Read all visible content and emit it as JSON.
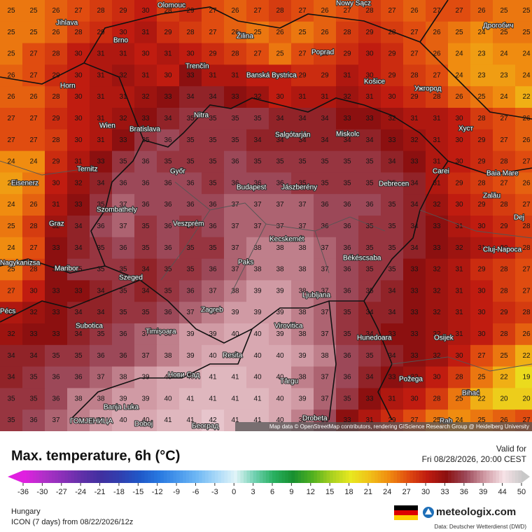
{
  "map": {
    "temperature_grid": [
      [
        25,
        25,
        26,
        27,
        28,
        29,
        30,
        28,
        29,
        27,
        26,
        27,
        28,
        27,
        26,
        27,
        28,
        27,
        26,
        27,
        27,
        26,
        25,
        25
      ],
      [
        25,
        25,
        26,
        28,
        29,
        30,
        31,
        29,
        28,
        27,
        26,
        25,
        26,
        25,
        26,
        28,
        29,
        28,
        27,
        26,
        25,
        24,
        25,
        25
      ],
      [
        25,
        27,
        28,
        30,
        31,
        31,
        30,
        31,
        30,
        29,
        28,
        27,
        25,
        27,
        28,
        29,
        30,
        29,
        27,
        26,
        24,
        23,
        24,
        24
      ],
      [
        26,
        27,
        29,
        30,
        31,
        32,
        31,
        30,
        33,
        31,
        31,
        30,
        30,
        29,
        29,
        31,
        30,
        29,
        28,
        27,
        24,
        23,
        23,
        24
      ],
      [
        26,
        26,
        28,
        30,
        31,
        31,
        32,
        33,
        34,
        34,
        33,
        32,
        30,
        31,
        31,
        32,
        31,
        30,
        29,
        28,
        26,
        25,
        24,
        22
      ],
      [
        27,
        27,
        29,
        30,
        31,
        32,
        33,
        34,
        35,
        35,
        35,
        35,
        34,
        34,
        34,
        33,
        33,
        32,
        31,
        31,
        30,
        28,
        27,
        26
      ],
      [
        27,
        27,
        28,
        30,
        31,
        33,
        35,
        36,
        35,
        35,
        35,
        34,
        34,
        34,
        34,
        34,
        34,
        33,
        32,
        31,
        30,
        29,
        27,
        26
      ],
      [
        24,
        24,
        29,
        31,
        33,
        35,
        36,
        35,
        35,
        35,
        36,
        35,
        35,
        35,
        35,
        35,
        35,
        34,
        33,
        31,
        30,
        29,
        28,
        27
      ],
      [
        23,
        25,
        30,
        32,
        34,
        36,
        36,
        36,
        36,
        35,
        36,
        36,
        36,
        35,
        35,
        35,
        35,
        35,
        34,
        31,
        29,
        28,
        27,
        26
      ],
      [
        24,
        26,
        31,
        33,
        35,
        37,
        36,
        36,
        36,
        36,
        37,
        37,
        37,
        37,
        36,
        36,
        36,
        35,
        34,
        32,
        30,
        29,
        28,
        27
      ],
      [
        25,
        28,
        32,
        34,
        36,
        37,
        35,
        36,
        35,
        36,
        37,
        37,
        37,
        37,
        36,
        36,
        35,
        35,
        34,
        33,
        31,
        30,
        29,
        28
      ],
      [
        24,
        27,
        33,
        34,
        35,
        36,
        35,
        36,
        35,
        35,
        37,
        38,
        38,
        38,
        37,
        36,
        35,
        35,
        34,
        33,
        32,
        31,
        30,
        28
      ],
      [
        25,
        28,
        33,
        35,
        35,
        35,
        34,
        35,
        35,
        36,
        37,
        38,
        38,
        38,
        37,
        36,
        35,
        35,
        33,
        32,
        31,
        29,
        28,
        27
      ],
      [
        27,
        30,
        33,
        33,
        34,
        35,
        34,
        35,
        36,
        37,
        38,
        39,
        39,
        38,
        37,
        36,
        35,
        34,
        33,
        32,
        31,
        30,
        28,
        27
      ],
      [
        31,
        32,
        33,
        34,
        34,
        35,
        35,
        36,
        37,
        38,
        39,
        39,
        39,
        38,
        37,
        35,
        34,
        34,
        33,
        32,
        31,
        30,
        29,
        28
      ],
      [
        32,
        33,
        33,
        34,
        35,
        36,
        37,
        38,
        39,
        39,
        40,
        40,
        39,
        38,
        37,
        35,
        34,
        33,
        33,
        32,
        31,
        30,
        28,
        26
      ],
      [
        34,
        34,
        35,
        35,
        36,
        36,
        37,
        38,
        39,
        40,
        40,
        40,
        40,
        39,
        38,
        36,
        35,
        34,
        33,
        32,
        30,
        27,
        25,
        22
      ],
      [
        34,
        35,
        36,
        36,
        37,
        38,
        39,
        40,
        40,
        41,
        41,
        40,
        40,
        38,
        37,
        36,
        34,
        33,
        32,
        30,
        28,
        25,
        22,
        19
      ],
      [
        35,
        35,
        36,
        38,
        38,
        39,
        39,
        40,
        41,
        41,
        41,
        41,
        40,
        39,
        37,
        35,
        33,
        31,
        30,
        28,
        25,
        22,
        20,
        20
      ],
      [
        35,
        36,
        37,
        38,
        39,
        40,
        40,
        41,
        41,
        42,
        41,
        41,
        40,
        38,
        36,
        33,
        31,
        29,
        27,
        25,
        24,
        25,
        26,
        27
      ]
    ],
    "cities": [
      "Olomouc",
      "Nowy Sącz",
      "Jihlava",
      "Brno",
      "Žilina",
      "Дрогобич",
      "Poprad",
      "Trenčín",
      "Banská Bystrica",
      "Košice",
      "Ужгород",
      "Horn",
      "Nitra",
      "Wien",
      "Bratislava",
      "Salgótarján",
      "Miskolc",
      "Хуст",
      "Ternitz",
      "Győr",
      "Carei",
      "Baia Mare",
      "Eisenerz",
      "Budapest",
      "Jászberény",
      "Debrecen",
      "Szombathely",
      "Zalău",
      "Graz",
      "Veszprém",
      "Dej",
      "Kecskemét",
      "Cluj-Napoca",
      "Paks",
      "Békéscsaba",
      "Maribor",
      "Nagykanizsa",
      "Szeged",
      "Ljubljana",
      "Pécs",
      "Zagreb",
      "Subotica",
      "Virovitica",
      "Timișoara",
      "Hunedoara",
      "Osijek",
      "Resita",
      "Požega",
      "Нови Сад",
      "Târgu",
      "Bihać",
      "ГОМЈЕНИЦА",
      "Banja Luka",
      "Doboj",
      "Београд",
      "Drobeta",
      "Rab"
    ],
    "attribution": "Map data © OpenStreetMap contributors, rendering GIScience Research Group @ Heidelberg University"
  },
  "footer": {
    "title": "Max. temperature, 6h (°C)",
    "valid_label": "Valid for",
    "valid_time": "Fri 08/28/2026, 20:00 CEST",
    "region": "Hungary",
    "model": "ICON (7 days) from 08/22/2026/12z",
    "brand": "meteologix.com",
    "source": "Data: Deutscher Wetterdienst (DWD)"
  },
  "colorbar": {
    "ticks": [
      -36,
      -30,
      -27,
      -24,
      -21,
      -18,
      -15,
      -12,
      -9,
      -6,
      -3,
      0,
      3,
      6,
      9,
      12,
      15,
      18,
      21,
      24,
      27,
      30,
      33,
      36,
      39,
      44,
      50
    ],
    "colors": [
      "#e020e0",
      "#b030c8",
      "#8a30b8",
      "#6030a8",
      "#4030a0",
      "#3040b0",
      "#2058c8",
      "#2878e0",
      "#4898ec",
      "#70b8f4",
      "#a8d8f8",
      "#e0f4f8",
      "#70d0b0",
      "#28b060",
      "#189030",
      "#50b020",
      "#a8d020",
      "#e8e820",
      "#f0c018",
      "#f08c10",
      "#e04c10",
      "#c01c10",
      "#8c1010",
      "#9c4858",
      "#d09aa4",
      "#f6e2e6",
      "#c8c8c8"
    ]
  }
}
